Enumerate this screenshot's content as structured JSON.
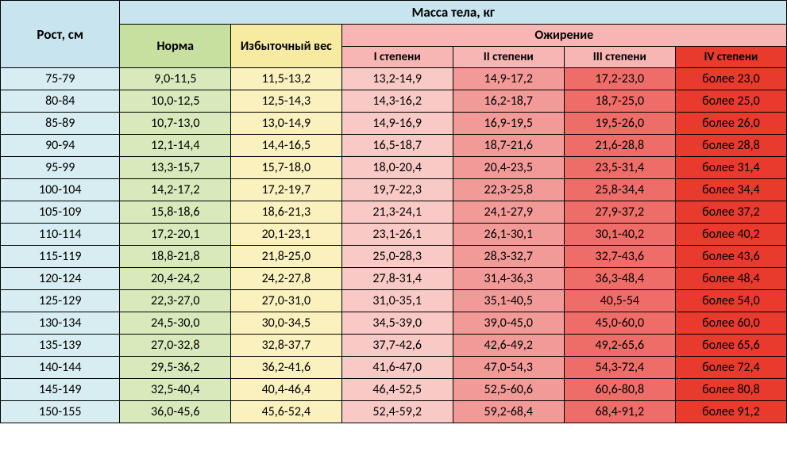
{
  "header": {
    "height_col": "Рост, см",
    "mass_title": "Масса тела, кг",
    "norm": "Норма",
    "overweight": "Избыточный вес",
    "obesity": "Ожирение",
    "ob1": "I степени",
    "ob2": "II степени",
    "ob3": "III степени",
    "ob4": "IV степени"
  },
  "rows": [
    {
      "h": "75-79",
      "norm": "9,0-11,5",
      "over": "11,5-13,2",
      "o1": "13,2-14,9",
      "o2": "14,9-17,2",
      "o3": "17,2-23,0",
      "o4": "более 23,0"
    },
    {
      "h": "80-84",
      "norm": "10,0-12,5",
      "over": "12,5-14,3",
      "o1": "14,3-16,2",
      "o2": "16,2-18,7",
      "o3": "18,7-25,0",
      "o4": "более 25,0"
    },
    {
      "h": "85-89",
      "norm": "10,7-13,0",
      "over": "13,0-14,9",
      "o1": "14,9-16,9",
      "o2": "16,9-19,5",
      "o3": "19,5-26,0",
      "o4": "более 26,0"
    },
    {
      "h": "90-94",
      "norm": "12,1-14,4",
      "over": "14,4-16,5",
      "o1": "16,5-18,7",
      "o2": "18,7-21,6",
      "o3": "21,6-28,8",
      "o4": "более 28,8"
    },
    {
      "h": "95-99",
      "norm": "13,3-15,7",
      "over": "15,7-18,0",
      "o1": "18,0-20,4",
      "o2": "20,4-23,5",
      "o3": "23,5-31,4",
      "o4": "более 31,4"
    },
    {
      "h": "100-104",
      "norm": "14,2-17,2",
      "over": "17,2-19,7",
      "o1": "19,7-22,3",
      "o2": "22,3-25,8",
      "o3": "25,8-34,4",
      "o4": "более 34,4"
    },
    {
      "h": "105-109",
      "norm": "15,8-18,6",
      "over": "18,6-21,3",
      "o1": "21,3-24,1",
      "o2": "24,1-27,9",
      "o3": "27,9-37,2",
      "o4": "более 37,2"
    },
    {
      "h": "110-114",
      "norm": "17,2-20,1",
      "over": "20,1-23,1",
      "o1": "23,1-26,1",
      "o2": "26,1-30,1",
      "o3": "30,1-40,2",
      "o4": "более 40,2"
    },
    {
      "h": "115-119",
      "norm": "18,8-21,8",
      "over": "21,8-25,0",
      "o1": "25,0-28,3",
      "o2": "28,3-32,7",
      "o3": "32,7-43,6",
      "o4": "более 43,6"
    },
    {
      "h": "120-124",
      "norm": "20,4-24,2",
      "over": "24,2-27,8",
      "o1": "27,8-31,4",
      "o2": "31,4-36,3",
      "o3": "36,3-48,4",
      "o4": "более 48,4"
    },
    {
      "h": "125-129",
      "norm": "22,3-27,0",
      "over": "27,0-31,0",
      "o1": "31,0-35,1",
      "o2": "35,1-40,5",
      "o3": "40,5-54",
      "o4": "более 54,0"
    },
    {
      "h": "130-134",
      "norm": "24,5-30,0",
      "over": "30,0-34,5",
      "o1": "34,5-39,0",
      "o2": "39,0-45,0",
      "o3": "45,0-60,0",
      "o4": "более 60,0"
    },
    {
      "h": "135-139",
      "norm": "27,0-32,8",
      "over": "32,8-37,7",
      "o1": "37,7-42,6",
      "o2": "42,6-49,2",
      "o3": "49,2-65,6",
      "o4": "более 65,6"
    },
    {
      "h": "140-144",
      "norm": "29,5-36,2",
      "over": "36,2-41,6",
      "o1": "41,6-47,0",
      "o2": "47,0-54,3",
      "o3": "54,3-72,4",
      "o4": "более 72,4"
    },
    {
      "h": "145-149",
      "norm": "32,5-40,4",
      "over": "40,4-46,4",
      "o1": "46,4-52,5",
      "o2": "52,5-60,6",
      "o3": "60,6-80,8",
      "o4": "более 80,8"
    },
    {
      "h": "150-155",
      "norm": "36,0-45,6",
      "over": "45,6-52,4",
      "o1": "52,4-59,2",
      "o2": "59,2-68,4",
      "o3": "68,4-91,2",
      "o4": "более 91,2"
    }
  ],
  "styling": {
    "colors": {
      "header_blue": "#c8e4ee",
      "header_green": "#c7df9f",
      "header_yellow": "#f7eaa1",
      "header_pink": "#f7b6b4",
      "header_red": "#e93a2e",
      "cell_height": "#d8edf1",
      "cell_norm": "#d8eabc",
      "cell_over": "#faf1bf",
      "cell_ob1": "#f9c9c6",
      "cell_ob2": "#f29a98",
      "cell_ob3": "#ee6d68",
      "cell_ob4": "#e93a2e",
      "border": "#000000"
    },
    "font_family": "Calibri",
    "header_fontsize_pt": 13,
    "cell_fontsize_pt": 12,
    "column_widths_ratio": [
      1.1,
      1,
      1,
      1,
      1,
      1,
      1
    ]
  }
}
